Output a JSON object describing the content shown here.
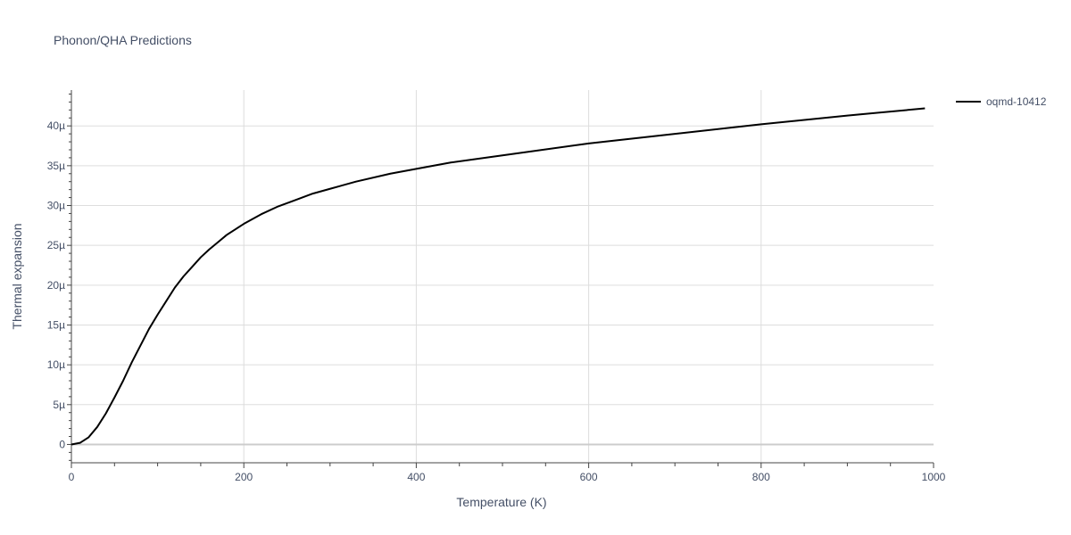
{
  "colors": {
    "text": "#444f66",
    "grid": "#dddddd",
    "zero_line": "#cccccc",
    "axis": "#444444",
    "series": "#000000",
    "background": "#ffffff"
  },
  "chart_data": {
    "type": "line",
    "title": "Phonon/QHA Predictions",
    "xlabel": "Temperature (K)",
    "ylabel": "Thermal expansion",
    "xlim": [
      0,
      1000
    ],
    "ylim": [
      -2.3,
      44.5
    ],
    "x_ticks": [
      0,
      200,
      400,
      600,
      800,
      1000
    ],
    "x_tick_labels": [
      "0",
      "200",
      "400",
      "600",
      "800",
      "1000"
    ],
    "y_ticks": [
      0,
      5,
      10,
      15,
      20,
      25,
      30,
      35,
      40
    ],
    "y_tick_labels": [
      "0",
      "5µ",
      "10µ",
      "15µ",
      "20µ",
      "25µ",
      "30µ",
      "35µ",
      "40µ"
    ],
    "grid": true,
    "legend": "top-right",
    "series": [
      {
        "name": "oqmd-10412",
        "color": "#000000",
        "x": [
          0,
          10,
          20,
          30,
          40,
          50,
          60,
          70,
          80,
          90,
          100,
          110,
          120,
          130,
          140,
          150,
          160,
          170,
          180,
          190,
          200,
          220,
          240,
          260,
          280,
          300,
          330,
          370,
          400,
          440,
          500,
          600,
          700,
          800,
          900,
          990
        ],
        "y": [
          0,
          0.2,
          0.9,
          2.2,
          3.9,
          5.9,
          8.0,
          10.3,
          12.4,
          14.5,
          16.3,
          18.0,
          19.7,
          21.1,
          22.3,
          23.5,
          24.5,
          25.4,
          26.3,
          27.0,
          27.7,
          28.9,
          29.9,
          30.7,
          31.5,
          32.1,
          33.0,
          34.0,
          34.6,
          35.4,
          36.3,
          37.8,
          39.0,
          40.2,
          41.3,
          42.2
        ]
      }
    ]
  }
}
